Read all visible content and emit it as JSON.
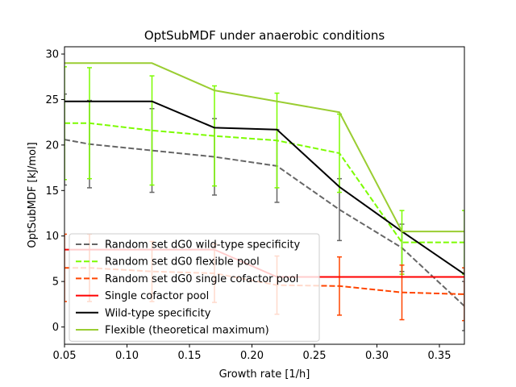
{
  "chart_data": {
    "type": "line",
    "title": "OptSubMDF under anaerobic conditions",
    "xlabel": "Growth rate [1/h]",
    "ylabel": "OptSubMDF [kJ/mol]",
    "xlim": [
      0.05,
      0.37
    ],
    "ylim": [
      -1.9,
      30.8
    ],
    "xticks": [
      "0.05",
      "0.10",
      "0.15",
      "0.20",
      "0.25",
      "0.30",
      "0.35"
    ],
    "yticks": [
      "0",
      "5",
      "10",
      "15",
      "20",
      "25",
      "30"
    ],
    "grid": false,
    "legend_position": "lower-left",
    "series": [
      {
        "name": "Random set dG0 wild-type specificity",
        "color": "#666666",
        "dash": "dashed",
        "x": [
          0.05,
          0.07,
          0.12,
          0.17,
          0.22,
          0.27,
          0.32,
          0.37
        ],
        "y": [
          20.6,
          20.1,
          19.4,
          18.7,
          17.7,
          12.9,
          8.7,
          2.3
        ],
        "err": [
          5.0,
          4.8,
          4.6,
          4.2,
          4.0,
          3.4,
          2.6,
          2.7
        ]
      },
      {
        "name": "Random set dG0 flexible pool",
        "color": "#7cfc00",
        "dash": "dashed",
        "x": [
          0.05,
          0.07,
          0.12,
          0.17,
          0.22,
          0.27,
          0.32,
          0.37
        ],
        "y": [
          22.4,
          22.4,
          21.6,
          21.0,
          20.5,
          19.1,
          9.3,
          9.3
        ],
        "err": [
          6.2,
          6.1,
          6.0,
          5.5,
          5.2,
          4.3,
          3.5,
          3.5
        ]
      },
      {
        "name": "Random set dG0 single cofactor pool",
        "color": "#ff4500",
        "dash": "dashed",
        "x": [
          0.05,
          0.07,
          0.12,
          0.17,
          0.22,
          0.27,
          0.32,
          0.37
        ],
        "y": [
          6.5,
          6.5,
          6.1,
          5.9,
          4.6,
          4.5,
          3.8,
          3.6
        ],
        "err": [
          3.7,
          3.7,
          3.3,
          3.2,
          3.2,
          3.2,
          3.0,
          2.9
        ]
      },
      {
        "name": "Single cofactor pool",
        "color": "#ff0000",
        "dash": "solid",
        "x": [
          0.05,
          0.12,
          0.17,
          0.22,
          0.27,
          0.32,
          0.37
        ],
        "y": [
          8.5,
          8.5,
          8.5,
          5.5,
          5.5,
          5.5,
          5.5
        ]
      },
      {
        "name": "Wild-type specificity",
        "color": "#000000",
        "dash": "solid",
        "x": [
          0.05,
          0.12,
          0.17,
          0.22,
          0.27,
          0.32,
          0.37
        ],
        "y": [
          24.8,
          24.8,
          21.9,
          21.7,
          15.4,
          10.5,
          5.8
        ]
      },
      {
        "name": "Flexible (theoretical maximum)",
        "color": "#9acd32",
        "dash": "solid",
        "x": [
          0.05,
          0.12,
          0.17,
          0.22,
          0.27,
          0.32,
          0.37
        ],
        "y": [
          29.0,
          29.0,
          26.0,
          24.8,
          23.6,
          10.5,
          10.5
        ]
      }
    ]
  }
}
